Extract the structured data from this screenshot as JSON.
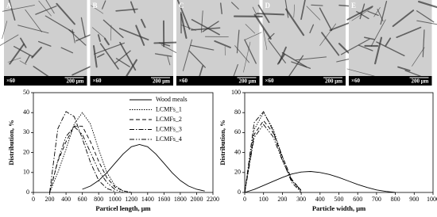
{
  "panels": [
    {
      "label": "A",
      "magnification": "×60",
      "scale": "200 μm"
    },
    {
      "label": "B",
      "magnification": "×60",
      "scale": "200 μm"
    },
    {
      "label": "C",
      "magnification": "×60",
      "scale": "200 μm"
    },
    {
      "label": "D",
      "magnification": "×60",
      "scale": "200 μm"
    },
    {
      "label": "E",
      "magnification": "×60",
      "scale": "200 μm"
    }
  ],
  "chart_data": [
    {
      "type": "line",
      "xlabel": "Particel length, μm",
      "ylabel": "Distribution, %",
      "x": [
        0,
        100,
        200,
        300,
        400,
        500,
        600,
        700,
        800,
        900,
        1000,
        1100,
        1200,
        1300,
        1400,
        1500,
        1600,
        1700,
        1800,
        1900,
        2000,
        2100,
        2200
      ],
      "xlim": [
        0,
        2200
      ],
      "xticks": [
        0,
        200,
        400,
        600,
        800,
        1000,
        1200,
        1400,
        1600,
        1800,
        2000,
        2200
      ],
      "ylim": [
        0,
        50
      ],
      "yticks": [
        0,
        10,
        20,
        30,
        40,
        50
      ],
      "legend": "upper right",
      "series": [
        {
          "name": "Wood meals",
          "color": "#000000",
          "dash": "none",
          "values": [
            null,
            null,
            null,
            null,
            null,
            null,
            1.6,
            3.2,
            6.0,
            9.9,
            14.6,
            19.3,
            22.9,
            24,
            22.9,
            19.3,
            14.6,
            9.9,
            6.0,
            3.2,
            1.6,
            0.7,
            null
          ]
        },
        {
          "name": "LCMFs_1",
          "color": "#000000",
          "dash": "1.5 1.5",
          "values": [
            null,
            null,
            0,
            10,
            21.6,
            34.3,
            40,
            34.3,
            21.6,
            10,
            3.4,
            0.8,
            0,
            null,
            null,
            null,
            null,
            null,
            null,
            null,
            null,
            null,
            null
          ]
        },
        {
          "name": "LCMFs_2",
          "color": "#000000",
          "dash": "5 3",
          "values": [
            null,
            null,
            0,
            15.6,
            25.4,
            33.2,
            33.2,
            25.4,
            15.6,
            7.4,
            2.7,
            0.8,
            0,
            null,
            null,
            null,
            null,
            null,
            null,
            null,
            null,
            null,
            null
          ]
        },
        {
          "name": "LCMFs_3",
          "color": "#000000",
          "dash": "6 2 1.5 2",
          "values": [
            null,
            null,
            0,
            32,
            40.5,
            38,
            27,
            15,
            6,
            2,
            0.5,
            null,
            null,
            null,
            null,
            null,
            null,
            null,
            null,
            null,
            null,
            null,
            null
          ]
        },
        {
          "name": "LCMFs_4",
          "color": "#000000",
          "dash": "6 2 1.5 2 1.5 2",
          "values": [
            null,
            null,
            0,
            16,
            28,
            33,
            29,
            20,
            11,
            5,
            1.5,
            0,
            null,
            null,
            null,
            null,
            null,
            null,
            null,
            null,
            null,
            null,
            null
          ]
        }
      ]
    },
    {
      "type": "line",
      "xlabel": "Particle width, μm",
      "ylabel": "Distribution, %",
      "x": [
        0,
        50,
        100,
        150,
        200,
        250,
        300,
        350,
        400,
        450,
        500,
        550,
        600,
        650,
        700,
        750,
        800,
        850,
        900,
        950,
        1000
      ],
      "xlim": [
        0,
        1000
      ],
      "xticks": [
        0,
        100,
        200,
        300,
        400,
        500,
        600,
        700,
        800,
        900,
        1000
      ],
      "ylim": [
        0,
        100
      ],
      "yticks": [
        0,
        20,
        40,
        60,
        80,
        100
      ],
      "series": [
        {
          "color": "#000000",
          "dash": "none",
          "values": [
            0,
            3,
            7,
            11,
            15,
            18.5,
            20.5,
            21,
            20,
            18,
            15,
            11.5,
            8,
            5,
            2.5,
            1,
            0,
            null,
            null,
            null,
            null
          ]
        },
        {
          "color": "#000000",
          "dash": "1.5 1.5",
          "values": [
            0,
            63,
            80,
            64,
            36,
            12,
            1,
            null,
            null,
            null,
            null,
            null,
            null,
            null,
            null,
            null,
            null,
            null,
            null,
            null,
            null
          ]
        },
        {
          "color": "#000000",
          "dash": "5 3",
          "values": [
            0,
            58,
            72,
            60,
            36,
            13,
            2,
            null,
            null,
            null,
            null,
            null,
            null,
            null,
            null,
            null,
            null,
            null,
            null,
            null,
            null
          ]
        },
        {
          "color": "#000000",
          "dash": "6 2 1.5 2",
          "values": [
            0,
            70,
            81,
            62,
            33,
            10,
            0,
            null,
            null,
            null,
            null,
            null,
            null,
            null,
            null,
            null,
            null,
            null,
            null,
            null,
            null
          ]
        },
        {
          "color": "#000000",
          "dash": "6 2 1.5 2 1.5 2",
          "values": [
            0,
            55,
            68,
            56,
            32,
            12,
            2,
            null,
            null,
            null,
            null,
            null,
            null,
            null,
            null,
            null,
            null,
            null,
            null,
            null,
            null
          ]
        }
      ]
    }
  ]
}
